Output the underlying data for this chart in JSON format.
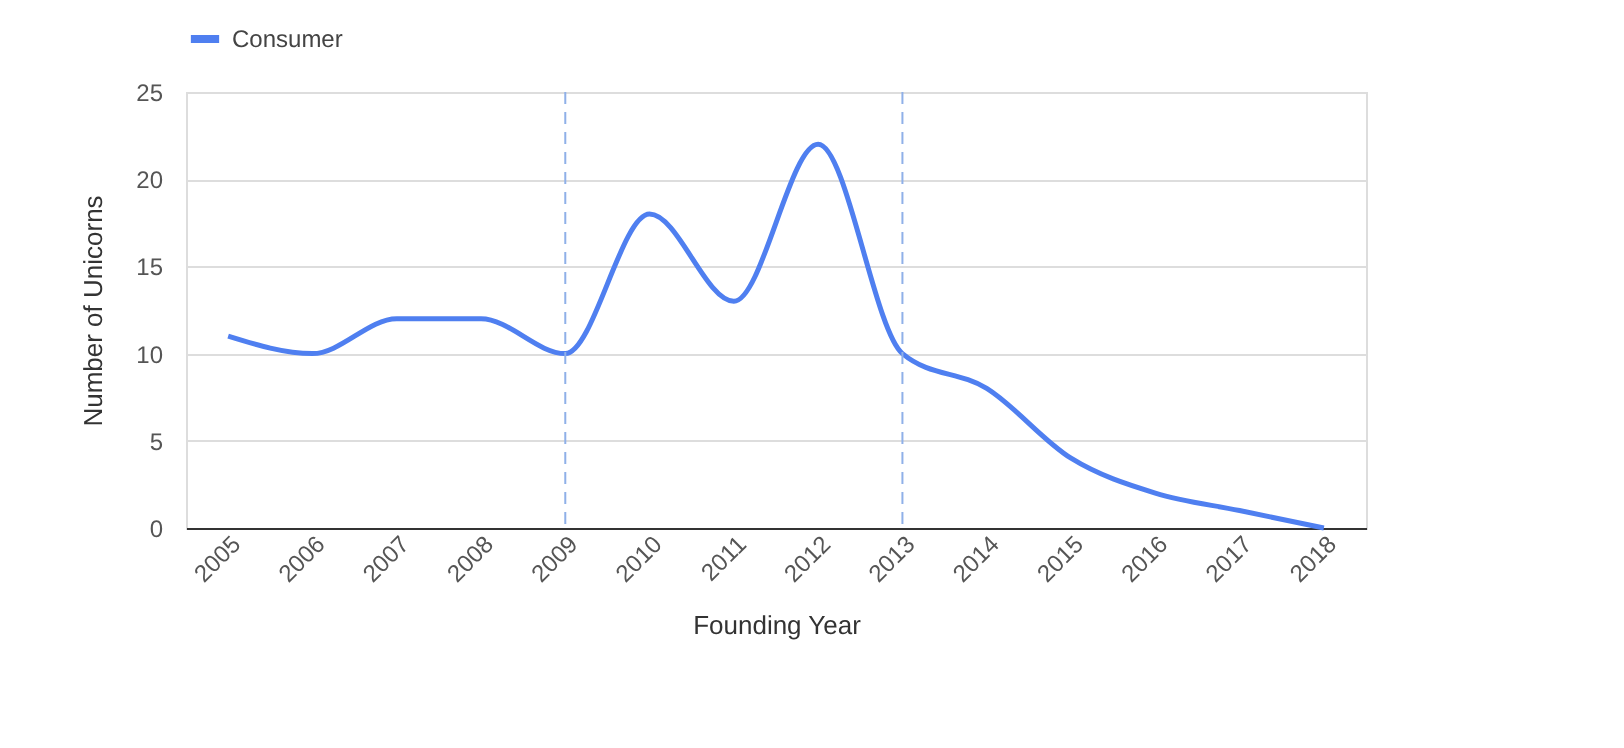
{
  "chart_data": {
    "type": "line",
    "xlabel": "Founding Year",
    "ylabel": "Number of Unicorns",
    "categories": [
      "2005",
      "2006",
      "2007",
      "2008",
      "2009",
      "2010",
      "2011",
      "2012",
      "2013",
      "2014",
      "2015",
      "2016",
      "2017",
      "2018"
    ],
    "series": [
      {
        "name": "Consumer",
        "color": "#4f7ff0",
        "values": [
          11,
          10,
          12,
          12,
          10,
          18,
          13,
          22,
          10,
          8,
          4,
          2,
          1,
          0
        ]
      }
    ],
    "ylim": [
      0,
      25
    ],
    "yticks": [
      0,
      5,
      10,
      15,
      20,
      25
    ],
    "grid": "y",
    "legend": "top",
    "marker": "none",
    "line_style": "solid",
    "ref_lines": [
      {
        "axis": "x",
        "value": "2009",
        "color": "#8fb0e8",
        "line_style": "dashed"
      },
      {
        "axis": "x",
        "value": "2013",
        "color": "#8fb0e8",
        "line_style": "dashed"
      }
    ]
  }
}
